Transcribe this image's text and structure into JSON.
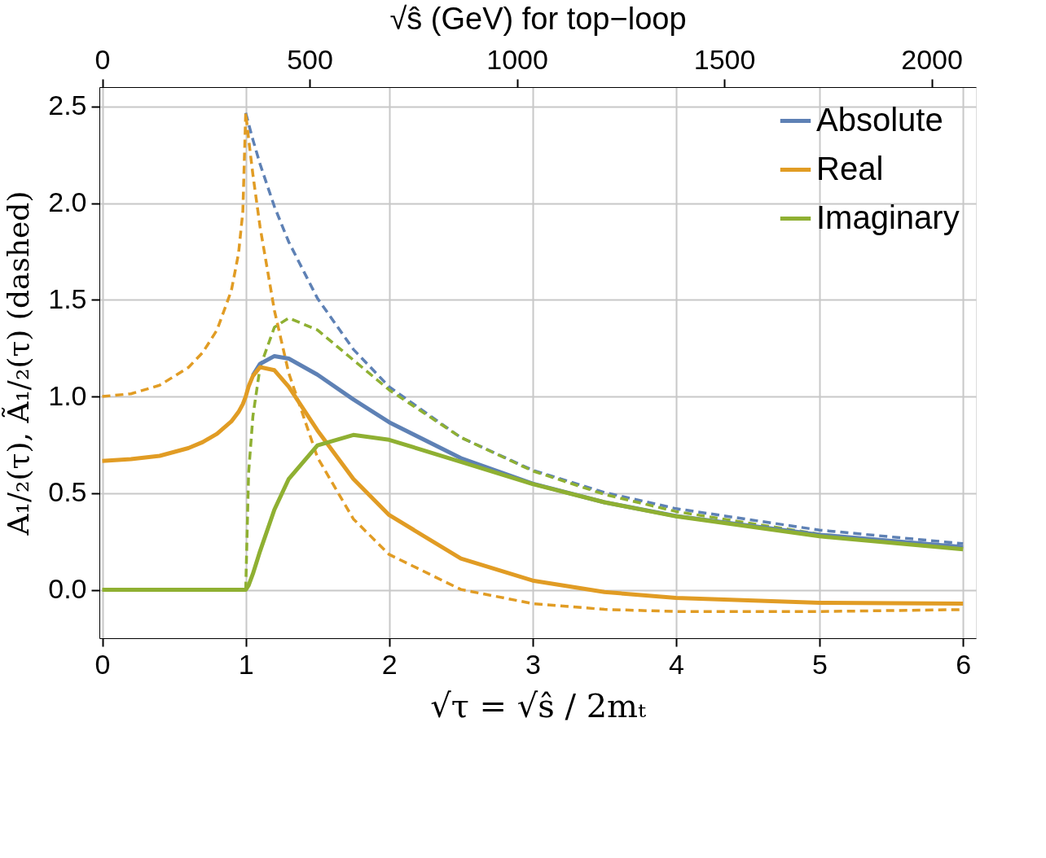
{
  "chart_data": {
    "type": "line",
    "xlabel": "√τ = √ŝ / 2mₜ",
    "ylabel": "A₁/₂(τ), Ã₁/₂(τ) (dashed)",
    "x2label": "√ŝ  (GeV) for top−loop",
    "x": [
      0,
      0.2,
      0.4,
      0.6,
      0.7,
      0.8,
      0.9,
      0.95,
      0.98,
      1,
      1.02,
      1.05,
      1.1,
      1.2,
      1.3,
      1.5,
      1.75,
      2,
      2.5,
      3,
      3.5,
      4,
      5,
      6
    ],
    "xlim": [
      -0.02,
      6.09
    ],
    "xticks": [
      0,
      1,
      2,
      3,
      4,
      5,
      6
    ],
    "x2lim": [
      -7,
      2107
    ],
    "x2ticks": [
      0,
      500,
      1000,
      1500,
      2000
    ],
    "ylim": [
      -0.25,
      2.6
    ],
    "yticks": [
      {
        "value": 0,
        "label": "0.0"
      },
      {
        "value": 0.5,
        "label": "0.5"
      },
      {
        "value": 1,
        "label": "1.0"
      },
      {
        "value": 1.5,
        "label": "1.5"
      },
      {
        "value": 2,
        "label": "2.0"
      },
      {
        "value": 2.5,
        "label": "2.5"
      }
    ],
    "grid": true,
    "legend": "top right",
    "series": [
      {
        "color": "#5e81b5",
        "line_style": "dashed",
        "values": [
          null,
          null,
          null,
          null,
          null,
          null,
          null,
          null,
          null,
          2.467,
          2.41,
          2.328,
          2.202,
          1.982,
          1.799,
          1.508,
          1.244,
          1.05,
          0.788,
          0.619,
          0.504,
          0.42,
          0.309,
          0.239
        ]
      },
      {
        "color": "#e19c24",
        "line_style": "dashed",
        "values": [
          1.0,
          1.014,
          1.058,
          1.15,
          1.227,
          1.344,
          1.548,
          1.74,
          1.956,
          2.467,
          2.333,
          2.148,
          1.877,
          1.445,
          1.121,
          0.685,
          0.367,
          0.183,
          0.002,
          -0.071,
          -0.101,
          -0.112,
          -0.112,
          -0.102
        ]
      },
      {
        "color": "#8fb032",
        "line_style": "dashed",
        "values": [
          null,
          null,
          null,
          null,
          null,
          null,
          null,
          null,
          null,
          0,
          0.603,
          0.897,
          1.152,
          1.358,
          1.406,
          1.344,
          1.189,
          1.034,
          0.788,
          0.615,
          0.494,
          0.405,
          0.288,
          0.216
        ]
      },
      {
        "name": "Absolute",
        "color": "#5e81b5",
        "line_style": "solid",
        "values": [
          null,
          null,
          null,
          null,
          null,
          null,
          null,
          null,
          null,
          null,
          null,
          1.109,
          1.169,
          1.209,
          1.196,
          1.113,
          0.985,
          0.867,
          0.681,
          0.549,
          0.453,
          0.382,
          0.285,
          0.222
        ]
      },
      {
        "name": "Real",
        "color": "#e19c24",
        "line_style": "solid",
        "values": [
          0.667,
          0.676,
          0.693,
          0.733,
          0.764,
          0.807,
          0.871,
          0.92,
          0.961,
          1.0,
          1.052,
          1.106,
          1.152,
          1.136,
          1.05,
          0.825,
          0.574,
          0.387,
          0.162,
          0.048,
          -0.011,
          -0.042,
          -0.067,
          -0.071
        ]
      },
      {
        "name": "Imaginary",
        "color": "#8fb032",
        "line_style": "solid",
        "values": [
          0,
          0,
          0,
          0,
          0,
          0,
          0,
          0,
          0,
          0,
          0.023,
          0.083,
          0.2,
          0.415,
          0.574,
          0.747,
          0.801,
          0.776,
          0.662,
          0.547,
          0.453,
          0.38,
          0.277,
          0.21
        ]
      }
    ]
  }
}
